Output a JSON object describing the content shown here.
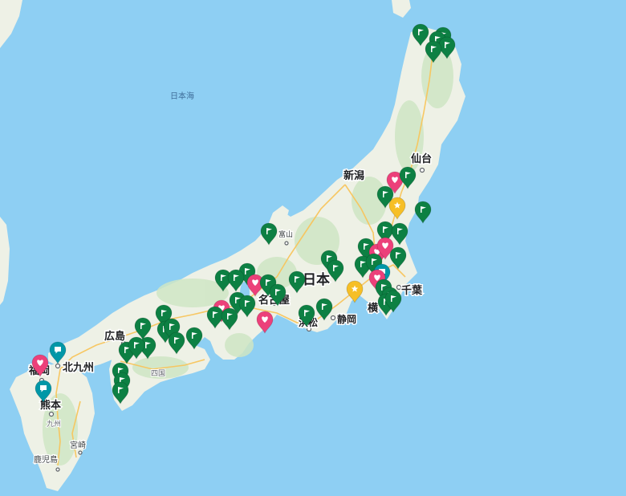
{
  "map": {
    "sea_label": "日本海",
    "country_label": "日本",
    "labels": {
      "sendai": "仙台",
      "niigata": "新潟",
      "toyama": "富山",
      "nagoya": "名古屋",
      "hamamatsu": "浜松",
      "shizuoka": "静岡",
      "yokohama": "横",
      "chiba": "千葉",
      "hiroshima": "広島",
      "shikoku": "四国",
      "kitakyushu": "北九州",
      "fukuoka": "福岡",
      "kumamoto": "熊本",
      "kyushu": "九州",
      "miyazaki": "宮崎",
      "kagoshima": "鹿児島",
      "honshu_fragment": "本"
    },
    "colors": {
      "water": "#8ecff3",
      "land": "#eef1e6",
      "forest": "#cfe6c4",
      "highway": "#f8c55c",
      "marker_green": "#0d8043",
      "marker_pink": "#ec407a",
      "marker_yellow": "#f6bf26",
      "marker_teal": "#0097a7"
    },
    "marker_icons": {
      "green": "flag-icon",
      "pink": "heart-icon",
      "yellow": "star-icon",
      "teal": "chat-bubble-icon"
    }
  }
}
